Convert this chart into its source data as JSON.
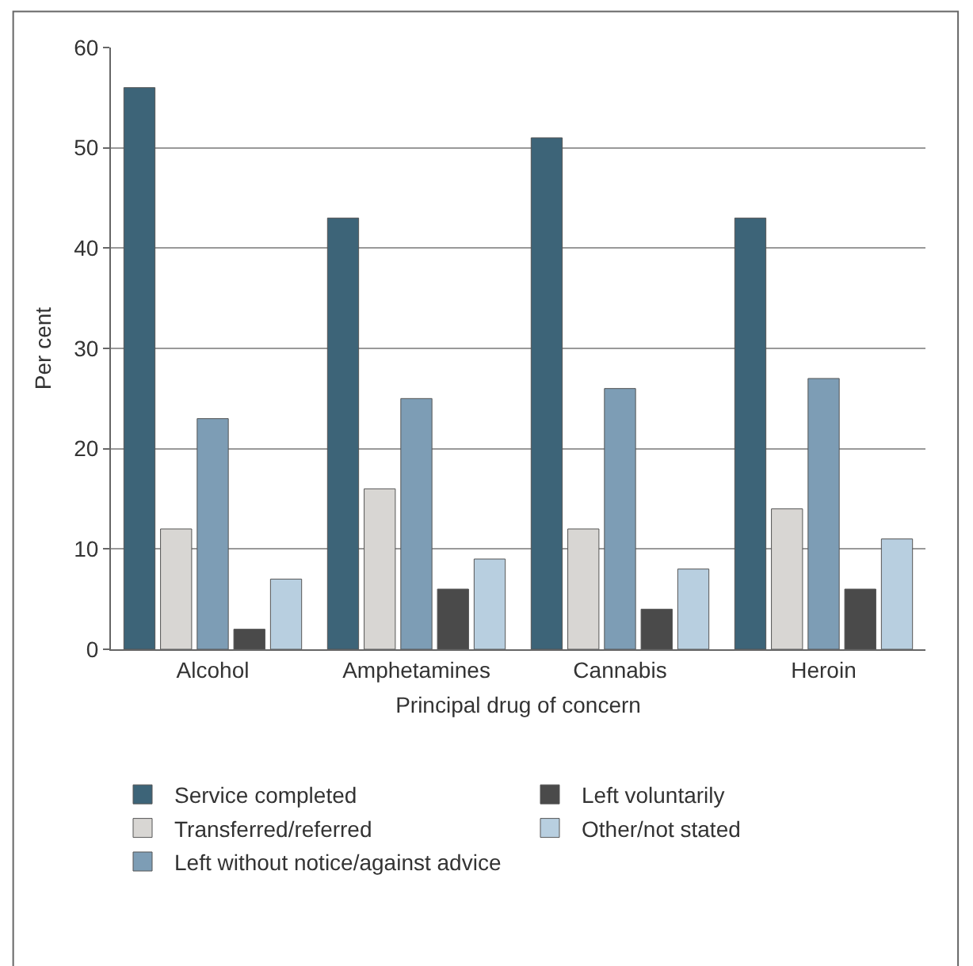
{
  "chart_data": {
    "type": "bar",
    "xlabel": "Principal drug of concern",
    "ylabel": "Per cent",
    "categories": [
      "Alcohol",
      "Amphetamines",
      "Cannabis",
      "Heroin"
    ],
    "series": [
      {
        "name": "Service completed",
        "color": "#3d6478",
        "values": [
          56,
          43,
          51,
          43
        ]
      },
      {
        "name": "Transferred/referred",
        "color": "#d8d6d3",
        "values": [
          12,
          16,
          12,
          14
        ]
      },
      {
        "name": "Left without notice/against advice",
        "color": "#7d9db5",
        "values": [
          23,
          25,
          26,
          27
        ]
      },
      {
        "name": "Left voluntarily",
        "color": "#4a4a4a",
        "values": [
          2,
          6,
          4,
          6
        ]
      },
      {
        "name": "Other/not stated",
        "color": "#b8cfe0",
        "values": [
          7,
          9,
          8,
          11
        ]
      }
    ],
    "ylim": [
      0,
      60
    ],
    "yticks": [
      0,
      10,
      20,
      30,
      40,
      50,
      60
    ],
    "grid": "y",
    "legend": "bottom"
  }
}
